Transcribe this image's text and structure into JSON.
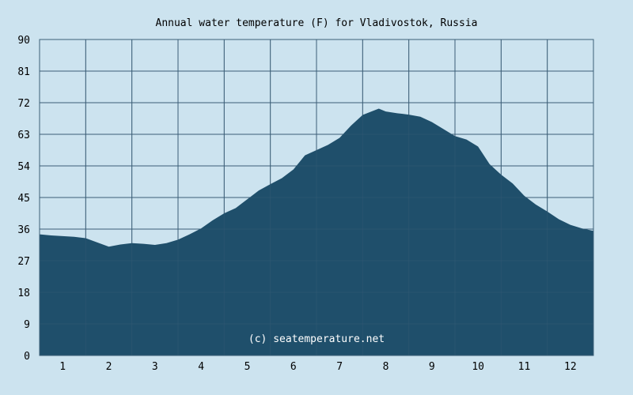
{
  "chart_data": {
    "type": "area",
    "title": "Annual water temperature (F) for Vladivostok, Russia",
    "watermark": "(c) seatemperature.net",
    "xlabel": "",
    "ylabel": "",
    "x_tick_labels": [
      "1",
      "2",
      "3",
      "4",
      "5",
      "6",
      "7",
      "8",
      "9",
      "10",
      "11",
      "12"
    ],
    "y_tick_labels": [
      "0",
      "9",
      "18",
      "27",
      "36",
      "45",
      "54",
      "63",
      "72",
      "81",
      "90"
    ],
    "xlim": [
      0.5,
      12.5
    ],
    "ylim": [
      0,
      90
    ],
    "grid": true,
    "x": [
      0.5,
      0.75,
      1.0,
      1.25,
      1.5,
      1.75,
      2.0,
      2.25,
      2.5,
      2.75,
      3.0,
      3.25,
      3.5,
      3.75,
      4.0,
      4.25,
      4.5,
      4.75,
      5.0,
      5.25,
      5.5,
      5.75,
      6.0,
      6.25,
      6.5,
      6.75,
      7.0,
      7.25,
      7.5,
      7.75,
      7.85,
      8.0,
      8.25,
      8.5,
      8.75,
      9.0,
      9.25,
      9.5,
      9.75,
      10.0,
      10.25,
      10.5,
      10.75,
      11.0,
      11.25,
      11.5,
      11.75,
      12.0,
      12.25,
      12.5
    ],
    "values": [
      34.5,
      34.2,
      34.0,
      33.8,
      33.4,
      32.2,
      31.0,
      31.6,
      32.0,
      31.8,
      31.5,
      32.0,
      33.0,
      34.5,
      36.2,
      38.5,
      40.5,
      42.0,
      44.5,
      47.0,
      48.8,
      50.5,
      53.0,
      57.0,
      58.5,
      60.0,
      62.0,
      65.5,
      68.5,
      69.8,
      70.3,
      69.5,
      69.0,
      68.6,
      68.0,
      66.5,
      64.5,
      62.5,
      61.5,
      59.5,
      54.5,
      51.5,
      49.0,
      45.5,
      43.0,
      41.0,
      38.8,
      37.2,
      36.2,
      35.5
    ],
    "series_color": "#1f4f6b",
    "grid_color": "#3b5f77",
    "background_color": "#cce3ef",
    "text_color": "#000000"
  }
}
